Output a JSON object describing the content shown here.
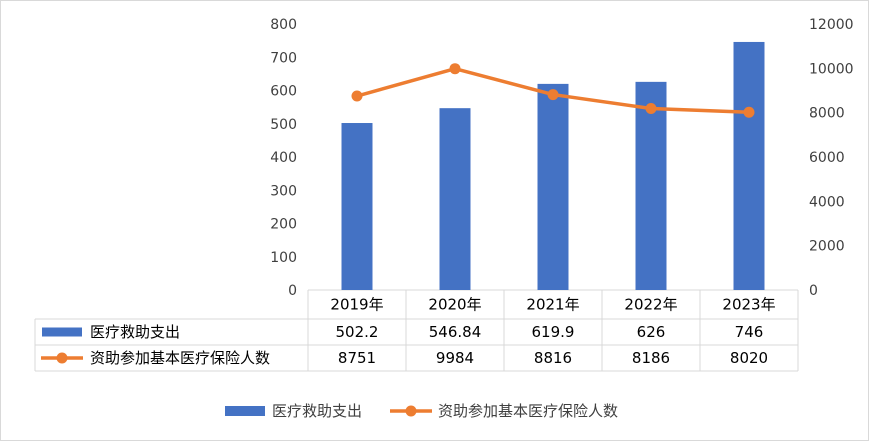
{
  "chart_data": {
    "type": "bar",
    "categories": [
      "2019年",
      "2020年",
      "2021年",
      "2022年",
      "2023年"
    ],
    "series": [
      {
        "name": "医疗救助支出",
        "type": "bar",
        "axis": "left",
        "color": "#4472C4",
        "values": [
          502.2,
          546.84,
          619.9,
          626,
          746
        ],
        "value_labels": [
          "502.2",
          "546.84",
          "619.9",
          "626",
          "746"
        ]
      },
      {
        "name": "资助参加基本医疗保险人数",
        "type": "line",
        "axis": "right",
        "color": "#ED7D31",
        "values": [
          8751,
          9984,
          8816,
          8186,
          8020
        ],
        "value_labels": [
          "8751",
          "9984",
          "8816",
          "8186",
          "8020"
        ]
      }
    ],
    "ylim_left": [
      0,
      800
    ],
    "yticks_left": [
      "0",
      "100",
      "200",
      "300",
      "400",
      "500",
      "600",
      "700",
      "800"
    ],
    "ylim_right": [
      0,
      12000
    ],
    "yticks_right": [
      "0",
      "2000",
      "4000",
      "6000",
      "8000",
      "10000",
      "12000"
    ],
    "legend_position": "bottom",
    "data_table": true,
    "grid": false
  }
}
